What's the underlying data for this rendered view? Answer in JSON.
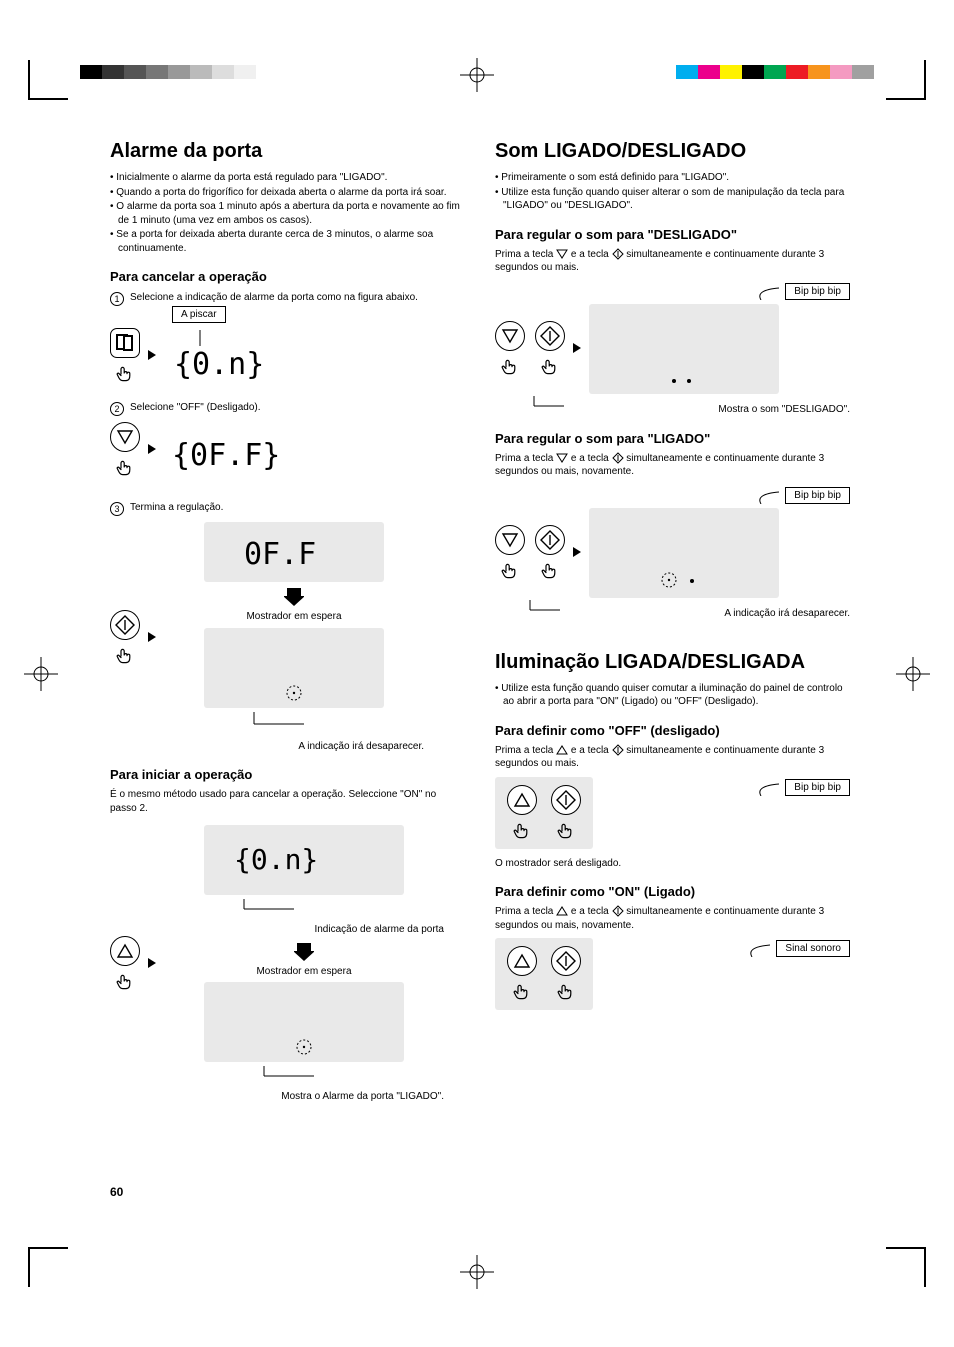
{
  "page_number": "60",
  "colorbar_left": [
    "#000000",
    "#333333",
    "#555555",
    "#777777",
    "#999999",
    "#bbbbbb",
    "#dddddd",
    "#f0f0f0"
  ],
  "colorbar_right": [
    "#00aeef",
    "#ec008c",
    "#fff200",
    "#000000",
    "#00a651",
    "#ed1c24",
    "#f7941d",
    "#f49ac1",
    "#a0a0a0"
  ],
  "left": {
    "h1": "Alarme da porta",
    "bullets": [
      "Inicialmente o alarme da porta está regulado para \"LIGADO\".",
      "Quando a porta do frigorífico for deixada aberta o alarme da porta irá soar.",
      "O alarme da porta soa 1 minuto após a abertura da porta e novamente ao fim de 1 minuto (uma vez em ambos os casos).",
      "Se a porta for deixada aberta durante cerca de 3 minutos, o alarme soa continuamente."
    ],
    "cancel_h2": "Para cancelar a operação",
    "step1": "Selecione a indicação de alarme da porta como na figura abaixo.",
    "piscar_label": "A piscar",
    "step2": "Selecione \"OFF\" (Desligado).",
    "step3": "Termina a regulação.",
    "mostrador": "Mostrador em espera",
    "desaparecer": "A indicação irá desaparecer.",
    "start_h2": "Para iniciar a operação",
    "start_body": "É o mesmo método usado para cancelar a operação. Seleccione \"ON\" no passo 2.",
    "alarm_ind": "Indicação de alarme da porta",
    "mostra_ligado": "Mostra o Alarme da porta \"LIGADO\"."
  },
  "right": {
    "h1a": "Som LIGADO/DESLIGADO",
    "bullets_a": [
      "Primeiramente o som está definido para \"LIGADO\".",
      "Utilize esta função quando quiser alterar o som de manipulação da tecla para \"LIGADO\" ou \"DESLIGADO\"."
    ],
    "off_h2": "Para regular o som para \"DESLIGADO\"",
    "off_body": "Prima a tecla ▽ e a tecla ◇ simultaneamente e continuamente durante 3 segundos ou mais.",
    "bip": "Bip bip bip",
    "mostra_des": "Mostra o som \"DESLIGADO\".",
    "on_h2": "Para regular o som para \"LIGADO\"",
    "on_body": "Prima a tecla ▽ e a tecla ◇ simultaneamente e continuamente durante 3 segundos ou mais, novamente.",
    "desaparecer": "A indicação irá desaparecer.",
    "h1b": "Iluminação LIGADA/DESLIGADA",
    "bullets_b": [
      "Utilize esta função quando quiser comutar a iluminação do painel de controlo ao abrir a porta para \"ON\" (Ligado) ou \"OFF\" (Desligado)."
    ],
    "il_off_h2": "Para definir como \"OFF\" (desligado)",
    "il_off_body": "Prima a tecla △ e a tecla ◇ simultaneamente e continuamente durante 3 segundos ou mais.",
    "il_off_note": "O mostrador será desligado.",
    "il_on_h2": "Para definir como \"ON\" (Ligado)",
    "il_on_body": "Prima a tecla △ e a tecla ◇ simultaneamente e continuamente durante 3 segundos ou mais, novamente.",
    "sinal": "Sinal sonoro"
  }
}
